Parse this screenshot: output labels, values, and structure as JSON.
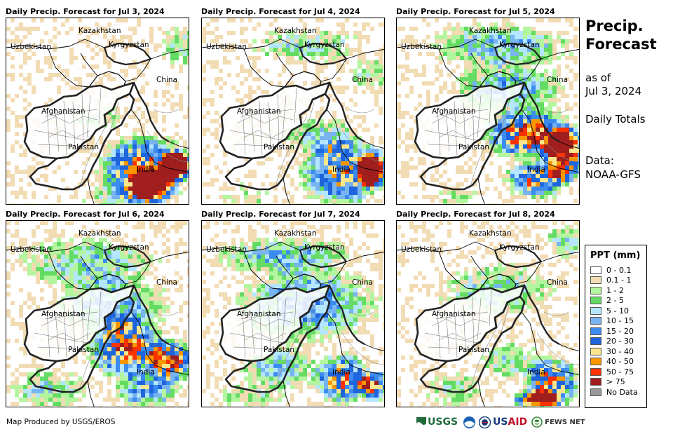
{
  "panels": [
    {
      "title": "Daily Precip. Forecast for Jul 3, 2024",
      "day": 0
    },
    {
      "title": "Daily Precip. Forecast for Jul 4, 2024",
      "day": 1
    },
    {
      "title": "Daily Precip. Forecast for Jul 5, 2024",
      "day": 2
    },
    {
      "title": "Daily Precip. Forecast for Jul 6, 2024",
      "day": 3
    },
    {
      "title": "Daily Precip. Forecast for Jul 7, 2024",
      "day": 4
    },
    {
      "title": "Daily Precip. Forecast for Jul 8, 2024",
      "day": 5
    }
  ],
  "map_labels": {
    "kazakhstan": "Kazakhstan",
    "uzbekistan": "Uzbekistan",
    "kyrgyzstan": "Kyrgyzstan",
    "china": "China",
    "afghanistan": "Afghanistan",
    "pakistan": "Pakistan",
    "india": "India"
  },
  "side": {
    "title_line1": "Precip.",
    "title_line2": "Forecast",
    "asof_line1": "as of",
    "asof_line2": "Jul 3, 2024",
    "totals": "Daily Totals",
    "data_line1": "Data:",
    "data_line2": "NOAA-GFS"
  },
  "legend": {
    "title": "PPT (mm)",
    "items": [
      {
        "label": "0 - 0.1",
        "color": "#ffffff"
      },
      {
        "label": "0.1 - 1",
        "color": "#f2dcb4"
      },
      {
        "label": "1 - 2",
        "color": "#b4f5a0"
      },
      {
        "label": "2 - 5",
        "color": "#64dc64"
      },
      {
        "label": "5 - 10",
        "color": "#b4e6ff"
      },
      {
        "label": "10 - 15",
        "color": "#78b4f0"
      },
      {
        "label": "15 - 20",
        "color": "#3c8cf0"
      },
      {
        "label": "20 - 30",
        "color": "#1e64dc"
      },
      {
        "label": "30 - 40",
        "color": "#fae68c"
      },
      {
        "label": "40 - 50",
        "color": "#fa9600"
      },
      {
        "label": "50 - 75",
        "color": "#fa3200"
      },
      {
        "label": "> 75",
        "color": "#a01e1e"
      },
      {
        "label": "No Data",
        "color": "#999999"
      }
    ]
  },
  "credit": "Map Produced by USGS/EROS",
  "logos": {
    "usgs": "USGS",
    "usaid_us": "US",
    "usaid_aid": "AID",
    "fews": "FEWS NET"
  }
}
